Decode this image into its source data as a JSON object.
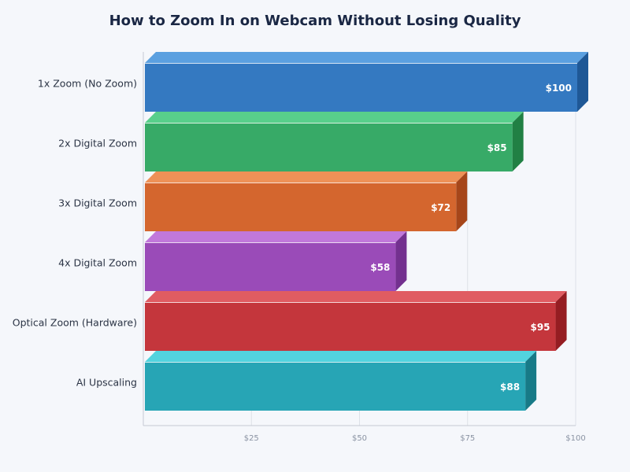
{
  "chart_data": {
    "type": "bar",
    "orientation": "horizontal",
    "style": "3d",
    "title": "How to Zoom In on Webcam Without Losing Quality",
    "categories": [
      "1x Zoom (No Zoom)",
      "2x Digital Zoom",
      "3x Digital Zoom",
      "4x Digital Zoom",
      "Optical Zoom (Hardware)",
      "AI Upscaling"
    ],
    "values": [
      100,
      85,
      72,
      58,
      95,
      88
    ],
    "data_labels": [
      "$100",
      "$85",
      "$72",
      "$58",
      "$95",
      "$88"
    ],
    "colors": [
      {
        "front": "#3479c1",
        "top": "#5ba0e0",
        "side": "#1f5896"
      },
      {
        "front": "#37aa67",
        "top": "#58cf8b",
        "side": "#218044"
      },
      {
        "front": "#d4662e",
        "top": "#ee9157",
        "side": "#a6461a"
      },
      {
        "front": "#9a4bb8",
        "top": "#c178db",
        "side": "#73308f"
      },
      {
        "front": "#c4363c",
        "top": "#e05c62",
        "side": "#951d22"
      },
      {
        "front": "#27a5b5",
        "top": "#52d3de",
        "side": "#177a87"
      }
    ],
    "xlim": [
      0,
      100
    ],
    "x_ticks": [
      25,
      50,
      75,
      100
    ],
    "x_tick_labels": [
      "$25",
      "$50",
      "$75",
      "$100"
    ],
    "xlabel": "",
    "ylabel": "",
    "grid": true,
    "legend": "none"
  }
}
